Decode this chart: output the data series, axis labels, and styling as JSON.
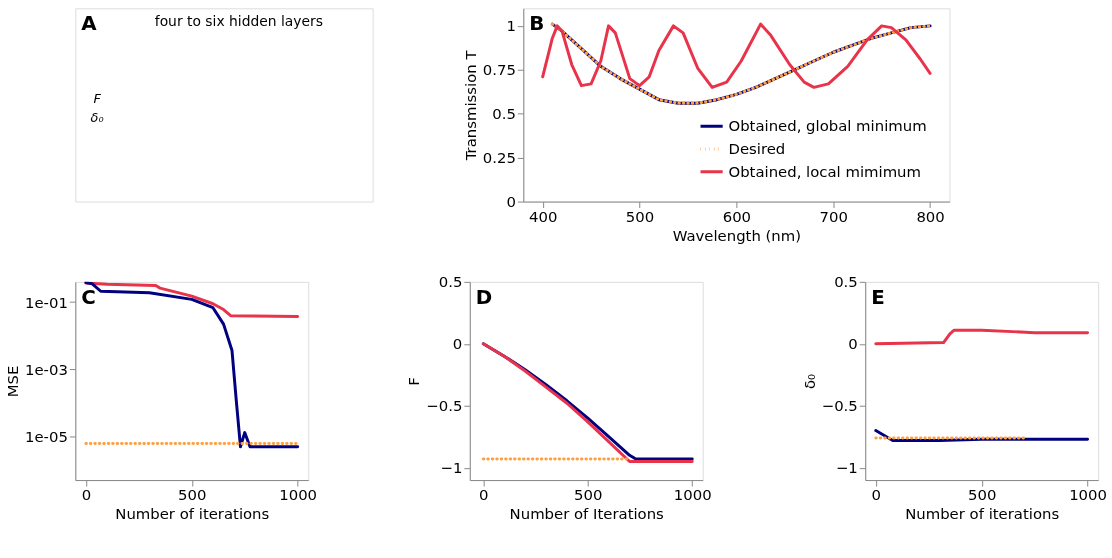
{
  "chart_data": [
    {
      "type": "other",
      "title": "A",
      "annotations": [
        "four to six hidden layers",
        "F",
        "δ₀"
      ]
    },
    {
      "type": "line",
      "title": "B",
      "xlabel": "Wavelength (nm)",
      "ylabel": "Transmission T",
      "xlim": [
        380,
        820
      ],
      "ylim": [
        0,
        1.1
      ],
      "xticks": [
        400,
        500,
        600,
        700,
        800
      ],
      "yticks": [
        0,
        0.25,
        0.5,
        0.75,
        1
      ],
      "legend": "bottom right",
      "grid": false,
      "series": [
        {
          "name": "Obtained, global minimum",
          "color": "#000080",
          "line_style": "solid",
          "x": [
            410,
            420,
            440,
            460,
            480,
            500,
            520,
            540,
            560,
            580,
            600,
            620,
            640,
            660,
            680,
            700,
            720,
            740,
            760,
            780,
            800
          ],
          "values": [
            1.01,
            0.97,
            0.87,
            0.77,
            0.7,
            0.64,
            0.58,
            0.56,
            0.56,
            0.58,
            0.61,
            0.65,
            0.7,
            0.75,
            0.8,
            0.85,
            0.89,
            0.93,
            0.96,
            0.99,
            1.0
          ]
        },
        {
          "name": "Desired",
          "color": "#ffa040",
          "line_style": "dotted",
          "x": [
            410,
            420,
            440,
            460,
            480,
            500,
            520,
            540,
            560,
            580,
            600,
            620,
            640,
            660,
            680,
            700,
            720,
            740,
            760,
            780,
            800
          ],
          "values": [
            1.01,
            0.97,
            0.87,
            0.77,
            0.7,
            0.64,
            0.58,
            0.56,
            0.56,
            0.58,
            0.61,
            0.65,
            0.7,
            0.75,
            0.8,
            0.85,
            0.89,
            0.93,
            0.96,
            0.99,
            1.0
          ]
        },
        {
          "name": "Obtained, local mimimum",
          "color": "#e8334a",
          "line_style": "solid",
          "x": [
            400,
            410,
            415,
            420,
            430,
            440,
            450,
            460,
            468,
            475,
            490,
            500,
            510,
            520,
            535,
            545,
            560,
            575,
            590,
            605,
            625,
            635,
            655,
            670,
            680,
            695,
            715,
            735,
            750,
            760,
            775,
            790,
            800
          ],
          "values": [
            0.71,
            0.93,
            1.0,
            0.97,
            0.78,
            0.66,
            0.67,
            0.8,
            1.0,
            0.96,
            0.7,
            0.66,
            0.71,
            0.86,
            1.0,
            0.96,
            0.76,
            0.65,
            0.68,
            0.8,
            1.01,
            0.95,
            0.78,
            0.68,
            0.65,
            0.67,
            0.77,
            0.92,
            1.0,
            0.99,
            0.92,
            0.81,
            0.73
          ]
        }
      ]
    },
    {
      "type": "line",
      "title": "C",
      "xlabel": "Number of iterations",
      "ylabel": "MSE",
      "log": "y",
      "xlim": [
        -50,
        1050
      ],
      "ylim": [
        5e-07,
        0.4
      ],
      "xticks": [
        0,
        500,
        1000
      ],
      "yticks": [
        {
          "value": 0.1,
          "label": "1e-01"
        },
        {
          "value": 0.001,
          "label": "1e-03"
        },
        {
          "value": 1e-05,
          "label": "1e-05"
        }
      ],
      "grid": false,
      "series": [
        {
          "color": "#e8334a",
          "line_style": "solid",
          "x": [
            0,
            100,
            330,
            350,
            500,
            600,
            650,
            685,
            1000
          ],
          "values": [
            0.37,
            0.34,
            0.31,
            0.26,
            0.15,
            0.089,
            0.06,
            0.039,
            0.037
          ]
        },
        {
          "color": "#000080",
          "line_style": "solid",
          "x": [
            0,
            30,
            70,
            300,
            500,
            600,
            650,
            690,
            710,
            730,
            750,
            775,
            1000
          ],
          "values": [
            0.38,
            0.35,
            0.21,
            0.19,
            0.12,
            0.068,
            0.022,
            0.0036,
            0.00012,
            4.9e-06,
            1.3e-05,
            4.9e-06,
            4.9e-06
          ]
        },
        {
          "color": "#ffa040",
          "line_style": "dotted",
          "x": [
            0,
            1000
          ],
          "values": [
            6.1e-06,
            6.1e-06
          ]
        }
      ]
    },
    {
      "type": "line",
      "title": "D",
      "xlabel": "Number of Iterations",
      "ylabel": "F",
      "xlim": [
        -65,
        1050
      ],
      "ylim": [
        -1.1,
        0.5
      ],
      "xticks": [
        0,
        500,
        1000
      ],
      "yticks": [
        0.5,
        0,
        {
          "value": -0.5,
          "label": "−0.5"
        },
        {
          "value": -1,
          "label": "−1"
        }
      ],
      "grid": false,
      "series": [
        {
          "color": "#000080",
          "line_style": "solid",
          "x": [
            0,
            100,
            200,
            300,
            400,
            500,
            600,
            700,
            730,
            1000
          ],
          "values": [
            0,
            -0.1,
            -0.21,
            -0.33,
            -0.46,
            -0.6,
            -0.75,
            -0.9,
            -0.93,
            -0.93
          ]
        },
        {
          "color": "#e8334a",
          "line_style": "solid",
          "x": [
            0,
            100,
            200,
            300,
            400,
            500,
            600,
            700,
            1000
          ],
          "values": [
            0,
            -0.1,
            -0.22,
            -0.35,
            -0.48,
            -0.63,
            -0.79,
            -0.95,
            -0.95
          ]
        },
        {
          "color": "#ffa040",
          "line_style": "dotted",
          "x": [
            0,
            700
          ],
          "values": [
            -0.93,
            -0.93
          ]
        }
      ]
    },
    {
      "type": "line",
      "title": "E",
      "xlabel": "Number of iterations",
      "ylabel": "δ₀",
      "xlim": [
        -50,
        1050
      ],
      "ylim": [
        -1.1,
        0.5
      ],
      "xticks": [
        0,
        500,
        1000
      ],
      "yticks": [
        0.5,
        0,
        {
          "value": -0.5,
          "label": "−0.5"
        },
        {
          "value": -1,
          "label": "−1"
        }
      ],
      "grid": false,
      "series": [
        {
          "color": "#e8334a",
          "line_style": "solid",
          "x": [
            0,
            320,
            350,
            370,
            500,
            750,
            1000
          ],
          "values": [
            0,
            0.01,
            0.08,
            0.11,
            0.11,
            0.09,
            0.09
          ]
        },
        {
          "color": "#000080",
          "line_style": "solid",
          "x": [
            0,
            30,
            80,
            300,
            500,
            1000
          ],
          "values": [
            -0.7,
            -0.73,
            -0.78,
            -0.78,
            -0.77,
            -0.77
          ]
        },
        {
          "color": "#ffa040",
          "line_style": "dotted",
          "x": [
            0,
            700
          ],
          "values": [
            -0.76,
            -0.76
          ]
        }
      ]
    }
  ]
}
